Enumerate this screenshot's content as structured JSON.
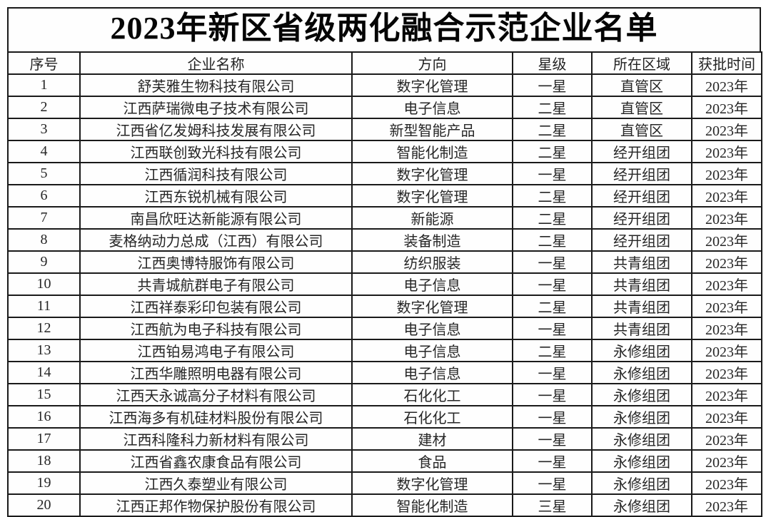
{
  "page": {
    "title": "2023年新区省级两化融合示范企业名单"
  },
  "colors": {
    "border": "#1a1a1a",
    "text": "#262626",
    "background": "#ffffff"
  },
  "table": {
    "headers": [
      "序号",
      "企业名称",
      "方向",
      "星级",
      "所在区域",
      "获批时间"
    ],
    "rows": [
      [
        "1",
        "舒芙雅生物科技有限公司",
        "数字化管理",
        "一星",
        "直管区",
        "2023年"
      ],
      [
        "2",
        "江西萨瑞微电子技术有限公司",
        "电子信息",
        "二星",
        "直管区",
        "2023年"
      ],
      [
        "3",
        "江西省亿发姆科技发展有限公司",
        "新型智能产品",
        "二星",
        "直管区",
        "2023年"
      ],
      [
        "4",
        "江西联创致光科技有限公司",
        "智能化制造",
        "二星",
        "经开组团",
        "2023年"
      ],
      [
        "5",
        "江西循润科技有限公司",
        "数字化管理",
        "一星",
        "经开组团",
        "2023年"
      ],
      [
        "6",
        "江西东锐机械有限公司",
        "数字化管理",
        "二星",
        "经开组团",
        "2023年"
      ],
      [
        "7",
        "南昌欣旺达新能源有限公司",
        "新能源",
        "二星",
        "经开组团",
        "2023年"
      ],
      [
        "8",
        "麦格纳动力总成（江西）有限公司",
        "装备制造",
        "二星",
        "经开组团",
        "2023年"
      ],
      [
        "9",
        "江西奥博特服饰有限公司",
        "纺织服装",
        "一星",
        "共青组团",
        "2023年"
      ],
      [
        "10",
        "共青城航群电子有限公司",
        "电子信息",
        "一星",
        "共青组团",
        "2023年"
      ],
      [
        "11",
        "江西祥泰彩印包装有限公司",
        "数字化管理",
        "二星",
        "共青组团",
        "2023年"
      ],
      [
        "12",
        "江西航为电子科技有限公司",
        "电子信息",
        "一星",
        "共青组团",
        "2023年"
      ],
      [
        "13",
        "江西铂易鸿电子有限公司",
        "电子信息",
        "二星",
        "永修组团",
        "2023年"
      ],
      [
        "14",
        "江西华雕照明电器有限公司",
        "电子信息",
        "一星",
        "永修组团",
        "2023年"
      ],
      [
        "15",
        "江西天永诚高分子材料有限公司",
        "石化化工",
        "一星",
        "永修组团",
        "2023年"
      ],
      [
        "16",
        "江西海多有机硅材料股份有限公司",
        "石化化工",
        "一星",
        "永修组团",
        "2023年"
      ],
      [
        "17",
        "江西科隆科力新材料有限公司",
        "建材",
        "一星",
        "永修组团",
        "2023年"
      ],
      [
        "18",
        "江西省鑫农康食品有限公司",
        "食品",
        "一星",
        "永修组团",
        "2023年"
      ],
      [
        "19",
        "江西久泰塑业有限公司",
        "数字化管理",
        "一星",
        "永修组团",
        "2023年"
      ],
      [
        "20",
        "江西正邦作物保护股份有限公司",
        "智能化制造",
        "三星",
        "永修组团",
        "2023年"
      ]
    ]
  }
}
